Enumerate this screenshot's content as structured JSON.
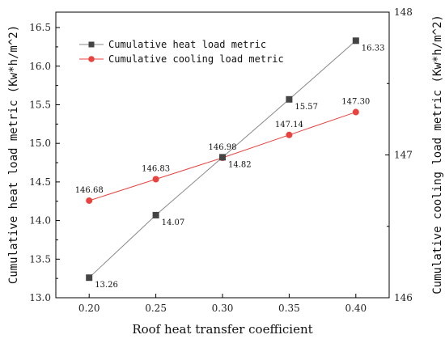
{
  "chart_data": {
    "type": "line",
    "xlabel": "Roof heat transfer coefficient",
    "ylabel": "Cumulative heat load metric (Kw*h/m^2)",
    "y2label": "Cumulative cooling load metric (Kw*h/m^2)",
    "x": [
      0.2,
      0.25,
      0.3,
      0.35,
      0.4
    ],
    "x_tick_labels": [
      "0.20",
      "0.25",
      "0.30",
      "0.35",
      "0.40"
    ],
    "xlim": [
      0.175,
      0.425
    ],
    "ylim": [
      13.0,
      16.7
    ],
    "y_ticks": [
      13.0,
      13.5,
      14.0,
      14.5,
      15.0,
      15.5,
      16.0,
      16.5
    ],
    "y_tick_labels": [
      "13.0",
      "13.5",
      "14.0",
      "14.5",
      "15.0",
      "15.5",
      "16.0",
      "16.5"
    ],
    "y2lim": [
      146.0,
      148.0
    ],
    "y2_ticks": [
      146,
      147,
      148
    ],
    "y2_tick_labels": [
      "146",
      "147",
      "148"
    ],
    "grid": false,
    "legend_position": "top-left",
    "series": [
      {
        "name": "Cumulative heat load metric",
        "axis": "left",
        "marker": "square",
        "color": "#888888",
        "marker_color": "#444444",
        "values": [
          13.26,
          14.07,
          14.82,
          15.57,
          16.33
        ],
        "labels": [
          "13.26",
          "14.07",
          "14.82",
          "15.57",
          "16.33"
        ]
      },
      {
        "name": "Cumulative cooling load metric",
        "axis": "right",
        "marker": "circle",
        "color": "#e8433f",
        "marker_color": "#e8433f",
        "values": [
          146.68,
          146.83,
          146.98,
          147.14,
          147.3
        ],
        "labels": [
          "146.68",
          "146.83",
          "146.98",
          "147.14",
          "147.30"
        ]
      }
    ]
  }
}
